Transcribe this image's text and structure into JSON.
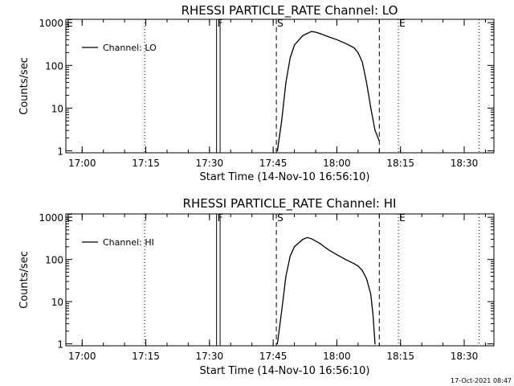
{
  "footer": {
    "timestamp": "17-Oct-2021 08:47"
  },
  "chart_data": [
    {
      "type": "line",
      "title": "RHESSI PARTICLE_RATE Channel: LO",
      "xlabel": "Start Time (14-Nov-10 16:56:10)",
      "ylabel": "Counts/sec",
      "yscale": "log",
      "xlim": [
        "16:56:10",
        "18:37:00"
      ],
      "ylim": [
        0.9,
        1200
      ],
      "x_ticks": [
        "17:00",
        "17:15",
        "17:30",
        "17:45",
        "18:00",
        "18:15",
        "18:30"
      ],
      "y_ticks": [
        "1",
        "10",
        "100",
        "1000"
      ],
      "legend": {
        "label": "Channel: LO",
        "position": "top-left"
      },
      "series": [
        {
          "name": "Channel: LO",
          "x": [
            "17:46:00",
            "17:47:00",
            "17:48:00",
            "17:49:00",
            "17:50:00",
            "17:52:00",
            "17:54:00",
            "17:55:00",
            "17:56:00",
            "17:58:00",
            "18:00:00",
            "18:02:00",
            "18:04:00",
            "18:05:00",
            "18:06:00",
            "18:07:00",
            "18:08:00",
            "18:09:00",
            "18:10:00"
          ],
          "y": [
            1,
            5,
            40,
            150,
            300,
            500,
            620,
            600,
            560,
            470,
            400,
            330,
            260,
            200,
            120,
            40,
            10,
            3,
            1.7
          ]
        }
      ],
      "markers": [
        {
          "label": "F",
          "time": "17:31:40",
          "style": "solid"
        },
        {
          "label": "",
          "time": "17:32:30",
          "style": "solid"
        },
        {
          "label": "S",
          "time": "17:45:45",
          "style": "dashed"
        },
        {
          "label": "",
          "time": "18:10:00",
          "style": "dashed"
        },
        {
          "label": "E",
          "time": "18:14:30",
          "style": "dotted"
        },
        {
          "label": "",
          "time": "17:14:45",
          "style": "dotted"
        },
        {
          "label": "",
          "time": "18:33:30",
          "style": "dotted"
        },
        {
          "label": "E",
          "time": "16:56:10",
          "style": "none"
        }
      ]
    },
    {
      "type": "line",
      "title": "RHESSI PARTICLE_RATE Channel: HI",
      "xlabel": "Start Time (14-Nov-10 16:56:10)",
      "ylabel": "Counts/sec",
      "yscale": "log",
      "xlim": [
        "16:56:10",
        "18:37:00"
      ],
      "ylim": [
        0.9,
        1200
      ],
      "x_ticks": [
        "17:00",
        "17:15",
        "17:30",
        "17:45",
        "18:00",
        "18:15",
        "18:30"
      ],
      "y_ticks": [
        "1",
        "10",
        "100",
        "1000"
      ],
      "legend": {
        "label": "Channel: HI",
        "position": "top-left"
      },
      "series": [
        {
          "name": "Channel: HI",
          "x": [
            "17:46:00",
            "17:47:00",
            "17:48:00",
            "17:49:00",
            "17:50:00",
            "17:52:00",
            "17:53:00",
            "17:54:00",
            "17:56:00",
            "17:58:00",
            "18:00:00",
            "18:02:00",
            "18:04:00",
            "18:05:00",
            "18:06:00",
            "18:07:00",
            "18:08:00",
            "18:08:30",
            "18:09:00"
          ],
          "y": [
            1,
            6,
            40,
            120,
            200,
            300,
            330,
            310,
            240,
            170,
            130,
            100,
            80,
            70,
            55,
            35,
            15,
            5,
            1
          ]
        }
      ],
      "markers": [
        {
          "label": "F",
          "time": "17:31:40",
          "style": "solid"
        },
        {
          "label": "",
          "time": "17:32:30",
          "style": "solid"
        },
        {
          "label": "S",
          "time": "17:45:45",
          "style": "dashed"
        },
        {
          "label": "",
          "time": "18:10:00",
          "style": "dashed"
        },
        {
          "label": "E",
          "time": "18:14:30",
          "style": "dotted"
        },
        {
          "label": "",
          "time": "17:14:45",
          "style": "dotted"
        },
        {
          "label": "",
          "time": "18:33:30",
          "style": "dotted"
        },
        {
          "label": "E",
          "time": "16:56:10",
          "style": "none"
        }
      ]
    }
  ]
}
